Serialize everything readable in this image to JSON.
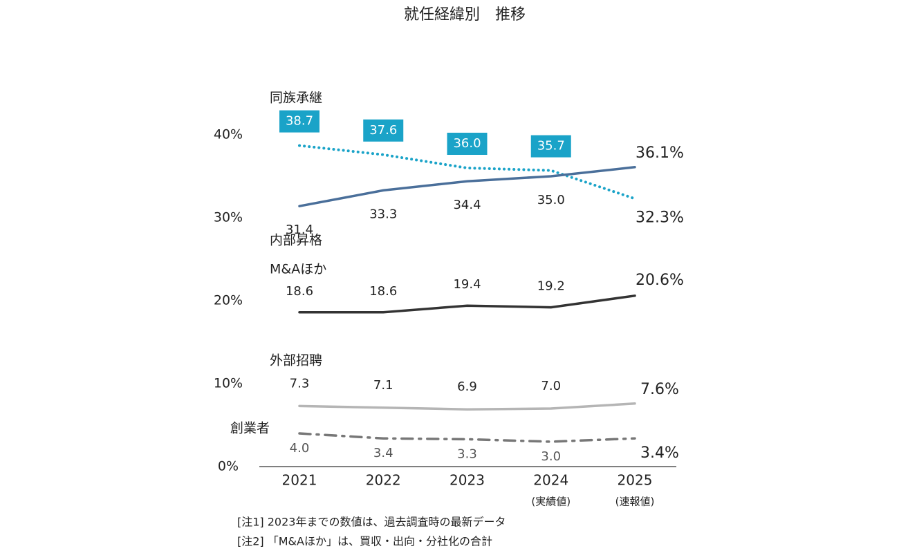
{
  "chart_data": {
    "type": "line",
    "title": "就任経緯別　推移",
    "categories": [
      "2021",
      "2022",
      "2023",
      "2024",
      "2025"
    ],
    "category_notes": [
      null,
      null,
      null,
      "(実績値)",
      "(速報値)"
    ],
    "ylim": [
      0,
      40
    ],
    "yticks": [
      {
        "value": 0,
        "label": "0%"
      },
      {
        "value": 10,
        "label": "10%"
      },
      {
        "value": 20,
        "label": "20%"
      },
      {
        "value": 30,
        "label": "30%"
      },
      {
        "value": 40,
        "label": "40%"
      }
    ],
    "series": [
      {
        "name": "同族承継",
        "color": "#1aa3c8",
        "style": "dotted",
        "values": [
          38.7,
          37.6,
          36.0,
          35.7,
          32.3
        ],
        "value_labels": [
          "38.7",
          "37.6",
          "36.0",
          "35.7",
          "32.3%"
        ]
      },
      {
        "name": "内部昇格",
        "color": "#4a6f9a",
        "style": "solid",
        "values": [
          31.4,
          33.3,
          34.4,
          35.0,
          36.1
        ],
        "value_labels": [
          "31.4",
          "33.3",
          "34.4",
          "35.0",
          "36.1%"
        ]
      },
      {
        "name": "M&Aほか",
        "color": "#333333",
        "style": "solid",
        "values": [
          18.6,
          18.6,
          19.4,
          19.2,
          20.6
        ],
        "value_labels": [
          "18.6",
          "18.6",
          "19.4",
          "19.2",
          "20.6%"
        ]
      },
      {
        "name": "外部招聘",
        "color": "#b5b5b5",
        "style": "solid",
        "values": [
          7.3,
          7.1,
          6.9,
          7.0,
          7.6
        ],
        "value_labels": [
          "7.3",
          "7.1",
          "6.9",
          "7.0",
          "7.6%"
        ]
      },
      {
        "name": "創業者",
        "color": "#777777",
        "style": "dashdot",
        "values": [
          4.0,
          3.4,
          3.3,
          3.0,
          3.4
        ],
        "value_labels": [
          "4.0",
          "3.4",
          "3.3",
          "3.0",
          "3.4%"
        ]
      }
    ],
    "notes": [
      "[注1] 2023年までの数値は、過去調査時の最新データ",
      "[注2] 「M&Aほか」は、買収・出向・分社化の合計"
    ]
  }
}
